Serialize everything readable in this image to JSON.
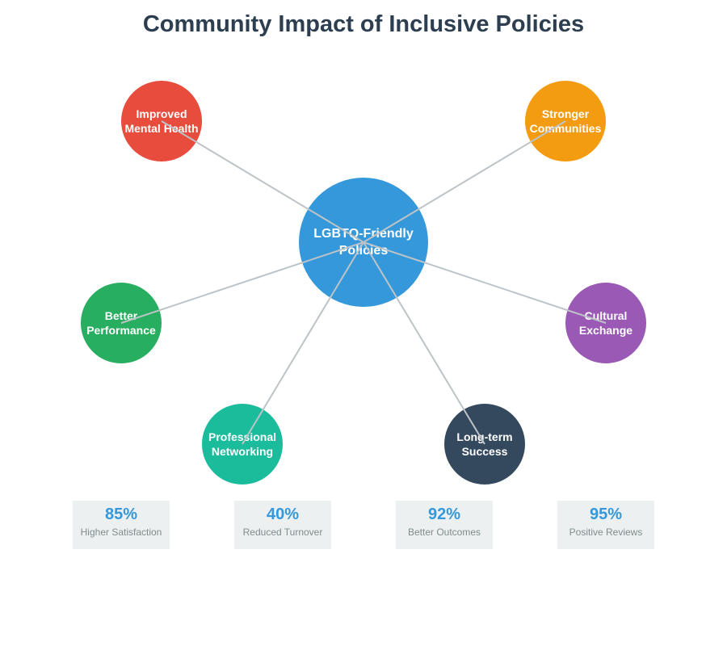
{
  "title": "Community Impact of Inclusive Policies",
  "hub": {
    "lines": [
      "LGBTQ-Friendly",
      "Policies"
    ],
    "color": "#3498db"
  },
  "nodes": [
    {
      "id": "improved-mental-health",
      "lines": [
        "Improved",
        "Mental Health"
      ],
      "color": "#e74c3c"
    },
    {
      "id": "stronger-communities",
      "lines": [
        "Stronger",
        "Communities"
      ],
      "color": "#f39c12"
    },
    {
      "id": "better-performance",
      "lines": [
        "Better",
        "Performance"
      ],
      "color": "#27ae60"
    },
    {
      "id": "cultural-exchange",
      "lines": [
        "Cultural",
        "Exchange"
      ],
      "color": "#9b59b6"
    },
    {
      "id": "professional-networking",
      "lines": [
        "Professional",
        "Networking"
      ],
      "color": "#1abc9c"
    },
    {
      "id": "long-term-success",
      "lines": [
        "Long-term",
        "Success"
      ],
      "color": "#34495e"
    }
  ],
  "stats": [
    {
      "value": "85%",
      "label": "Higher Satisfaction"
    },
    {
      "value": "40%",
      "label": "Reduced Turnover"
    },
    {
      "value": "92%",
      "label": "Better Outcomes"
    },
    {
      "value": "95%",
      "label": "Positive Reviews"
    }
  ],
  "colors": {
    "title": "#2c3e50",
    "link": "#bdc3c7",
    "stat_value": "#3498db",
    "stat_label": "#7f8c8d",
    "stat_bg": "#ecf0f1"
  }
}
